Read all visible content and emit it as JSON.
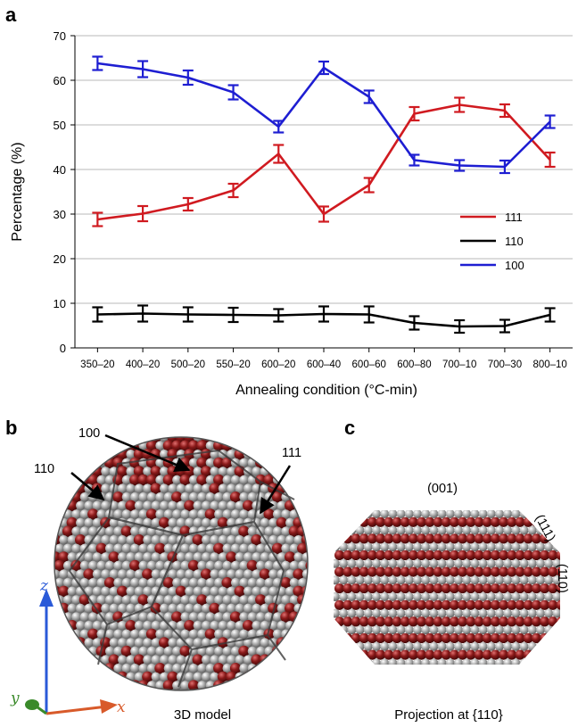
{
  "panels": {
    "a": "a",
    "b": "b",
    "c": "c"
  },
  "chart_data": {
    "type": "line",
    "categories": [
      "350–20",
      "400–20",
      "500–20",
      "550–20",
      "600–20",
      "600–40",
      "600–60",
      "600–80",
      "700–10",
      "700–30",
      "800–10"
    ],
    "xlabel": "Annealing condition (°C-min)",
    "ylabel": "Percentage (%)",
    "ylim": [
      0,
      70
    ],
    "yticks": [
      0,
      10,
      20,
      30,
      40,
      50,
      60,
      70
    ],
    "grid": true,
    "legend_position": "right-middle",
    "series": [
      {
        "name": "111",
        "color": "#d01a20",
        "values": [
          28.8,
          30.1,
          32.2,
          35.3,
          43.5,
          30.0,
          36.5,
          52.5,
          54.5,
          53.2,
          42.2
        ],
        "errors": [
          1.5,
          1.7,
          1.4,
          1.5,
          2.0,
          1.7,
          1.6,
          1.5,
          1.6,
          1.4,
          1.6
        ]
      },
      {
        "name": "110",
        "color": "#000000",
        "values": [
          7.5,
          7.7,
          7.5,
          7.4,
          7.3,
          7.6,
          7.5,
          5.6,
          4.8,
          4.9,
          7.4
        ],
        "errors": [
          1.6,
          1.8,
          1.6,
          1.6,
          1.4,
          1.7,
          1.8,
          1.5,
          1.4,
          1.4,
          1.5
        ]
      },
      {
        "name": "100",
        "color": "#1e1ed2",
        "values": [
          63.8,
          62.5,
          60.6,
          57.3,
          49.6,
          62.8,
          56.3,
          42.1,
          40.9,
          40.6,
          50.7
        ],
        "errors": [
          1.5,
          1.8,
          1.6,
          1.6,
          1.3,
          1.4,
          1.4,
          1.2,
          1.2,
          1.4,
          1.4
        ]
      }
    ]
  },
  "model_3d": {
    "labels": {
      "f100": "100",
      "f110": "110",
      "f111": "111"
    },
    "axes": {
      "x": "x",
      "y": "y",
      "z": "z"
    },
    "caption": "3D model"
  },
  "projection": {
    "labels": {
      "f001": "(001)",
      "f111": "(111)",
      "f110": "(110)"
    },
    "caption": "Projection at {110}"
  },
  "colors": {
    "atom_red": "#8b1a1a",
    "atom_gray": "#a8a8a8"
  }
}
